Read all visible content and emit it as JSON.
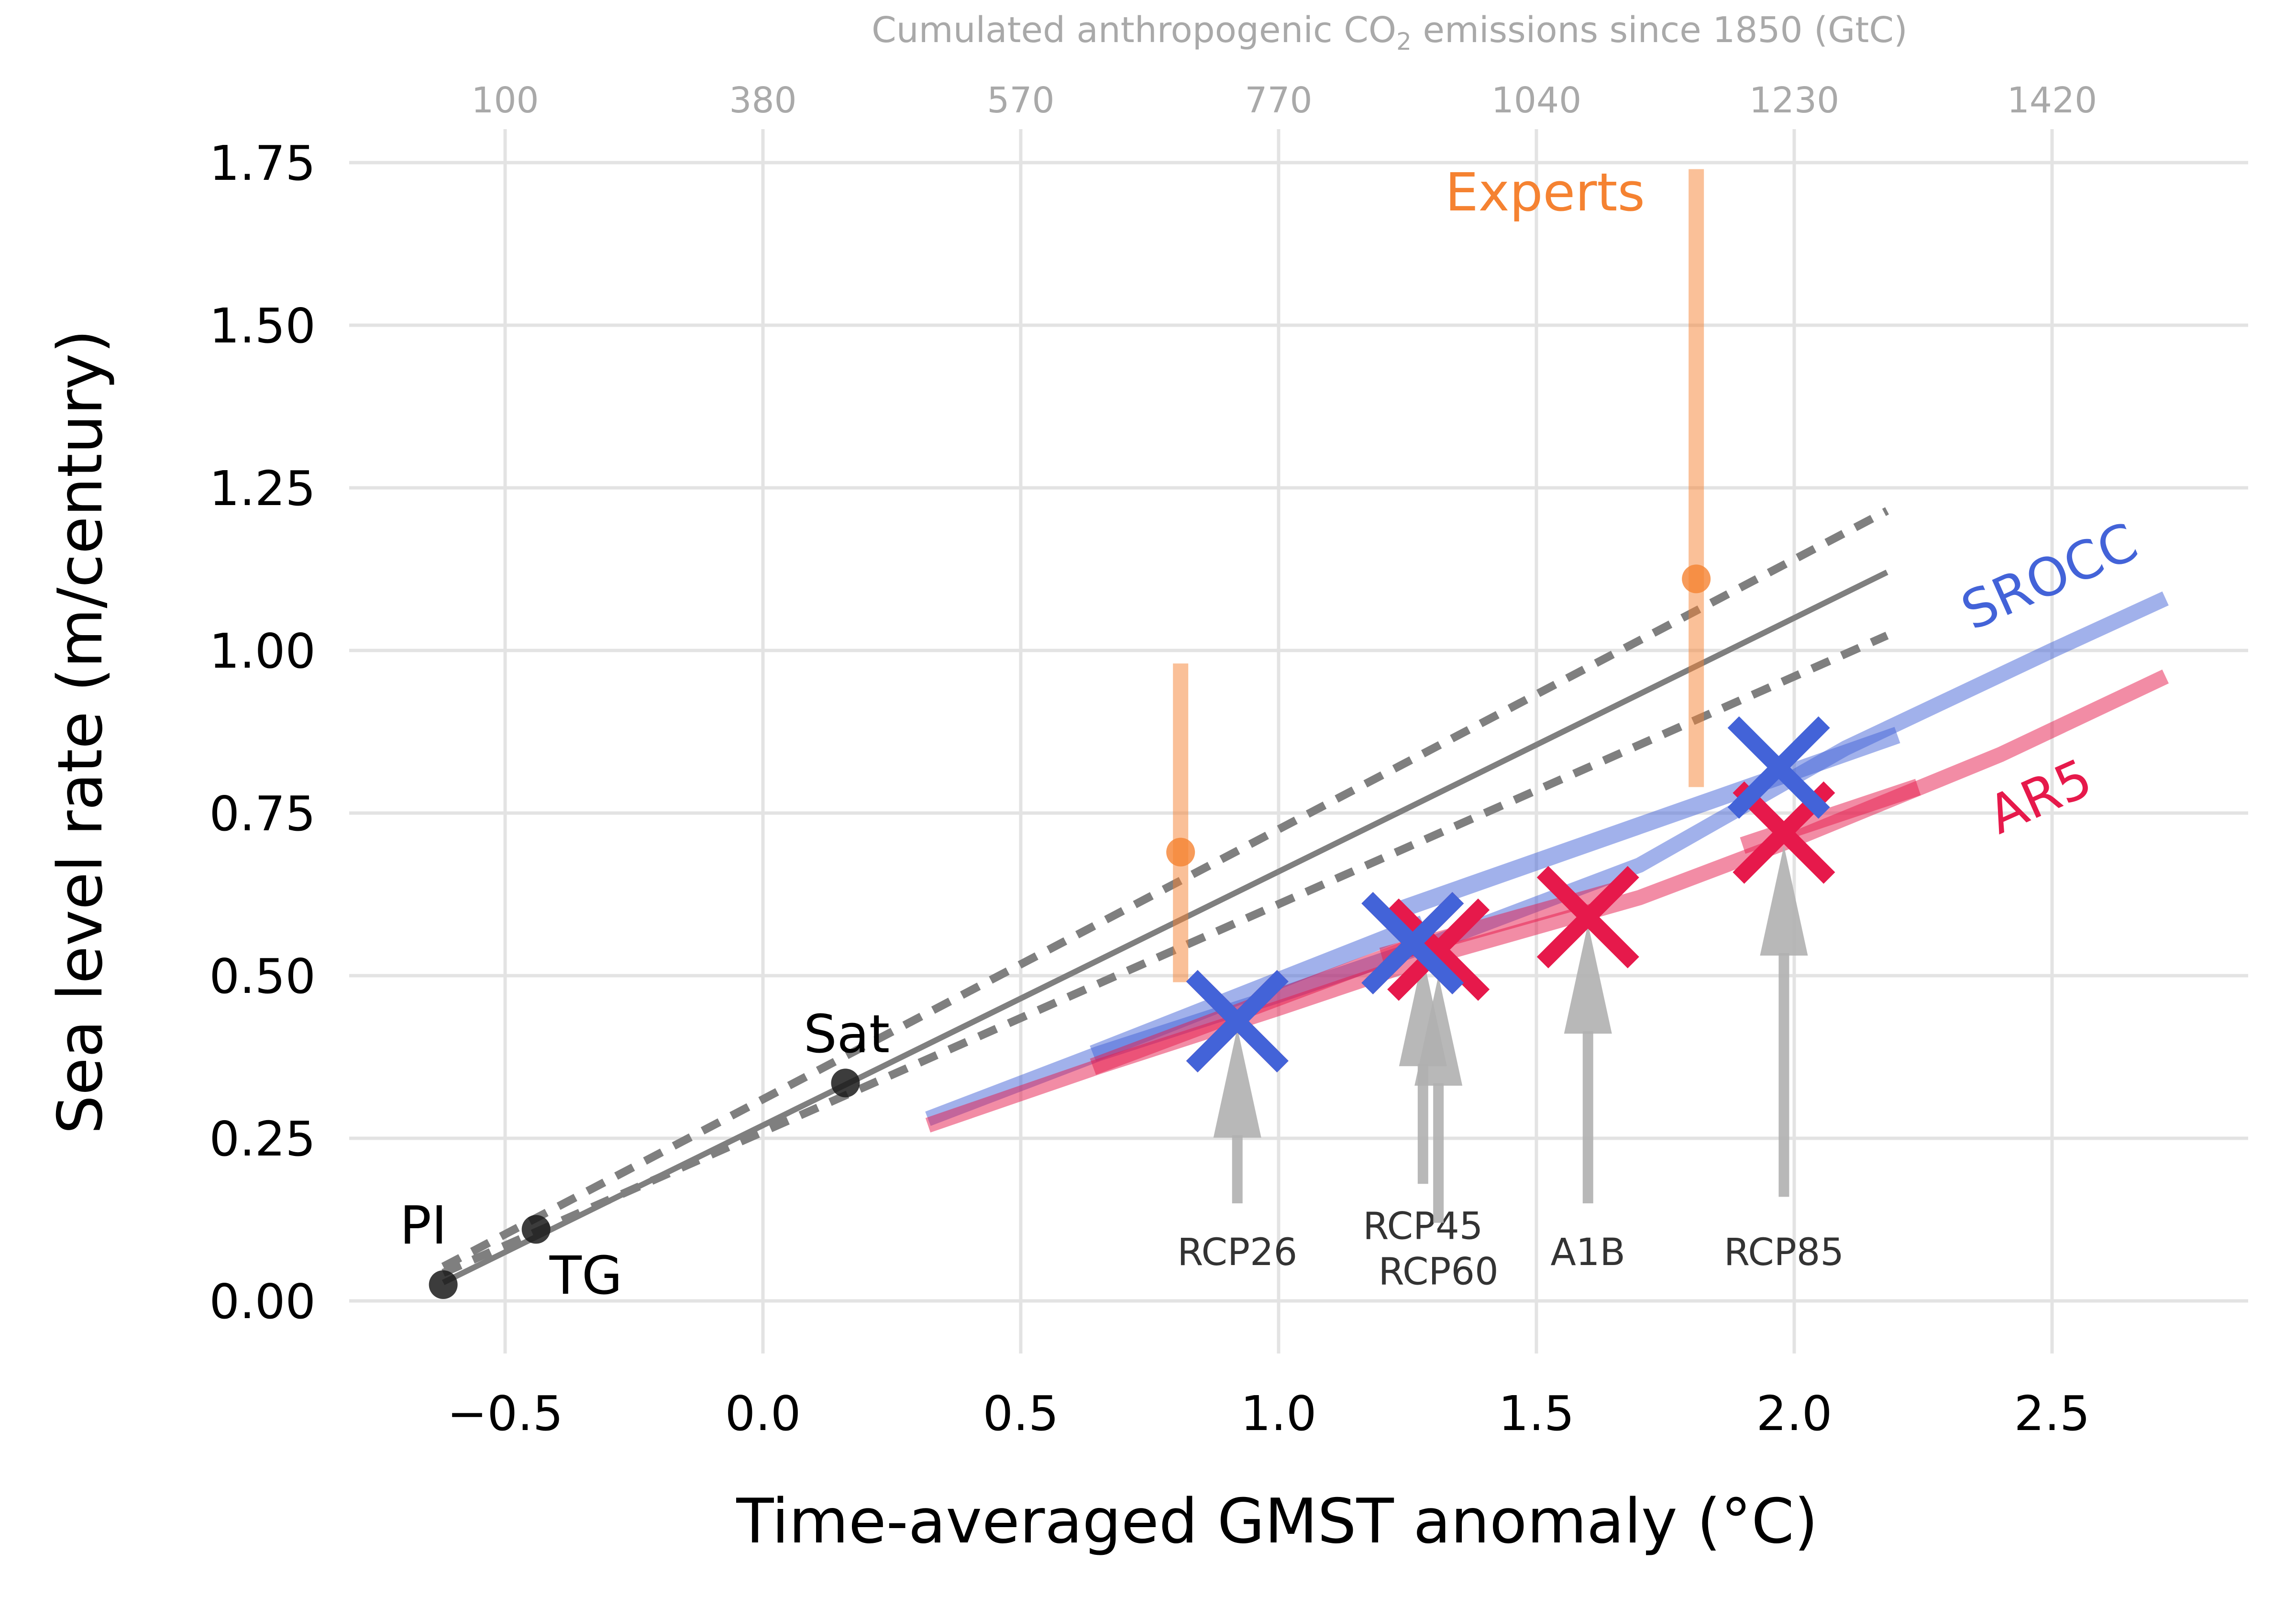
{
  "chart_data": {
    "type": "scatter",
    "title": "",
    "xlabel": "Time-averaged GMST anomaly (°C)",
    "ylabel": "Sea level rate (m/century)",
    "top_xlabel": "Cumulated anthropogenic CO₂ emissions since 1850 (GtC)",
    "xlim": [
      -0.78,
      2.92
    ],
    "ylim": [
      -0.08,
      1.8
    ],
    "grid": true,
    "x_ticks": [
      -0.5,
      0.0,
      0.5,
      1.0,
      1.5,
      2.0,
      2.5
    ],
    "x_tick_labels": [
      "−0.5",
      "0.0",
      "0.5",
      "1.0",
      "1.5",
      "2.0",
      "2.5"
    ],
    "y_ticks": [
      0.0,
      0.25,
      0.5,
      0.75,
      1.0,
      1.25,
      1.5,
      1.75
    ],
    "y_tick_labels": [
      "0.00",
      "0.25",
      "0.50",
      "0.75",
      "1.00",
      "1.25",
      "1.50",
      "1.75"
    ],
    "top_ticks": [
      {
        "x": -0.5,
        "label": "100"
      },
      {
        "x": 0.0,
        "label": "380"
      },
      {
        "x": 0.5,
        "label": "570"
      },
      {
        "x": 1.0,
        "label": "770"
      },
      {
        "x": 1.5,
        "label": "1040"
      },
      {
        "x": 2.0,
        "label": "1230"
      },
      {
        "x": 2.5,
        "label": "1420"
      }
    ],
    "observations": [
      {
        "name": "PI",
        "x": -0.62,
        "y": 0.025
      },
      {
        "name": "TG",
        "x": -0.44,
        "y": 0.11
      },
      {
        "name": "Sat",
        "x": 0.16,
        "y": 0.335
      }
    ],
    "obs_fit": {
      "x_range": [
        -0.62,
        2.18
      ],
      "central": {
        "slope": 0.39,
        "intercept": 0.27
      },
      "upper": {
        "slope": 0.415,
        "intercept": 0.31
      },
      "lower": {
        "slope": 0.35,
        "intercept": 0.26
      }
    },
    "experts": {
      "label": "Experts",
      "points": [
        {
          "x": 0.81,
          "y": 0.69,
          "low": 0.49,
          "high": 0.98
        },
        {
          "x": 1.81,
          "y": 1.11,
          "low": 0.79,
          "high": 1.74
        }
      ]
    },
    "series": [
      {
        "name": "SROCC",
        "line": [
          [
            0.32,
            0.28
          ],
          [
            0.65,
            0.38
          ],
          [
            1.0,
            0.47
          ],
          [
            1.3,
            0.55
          ],
          [
            1.7,
            0.67
          ],
          [
            2.1,
            0.85
          ],
          [
            2.5,
            1.0
          ],
          [
            2.72,
            1.08
          ]
        ],
        "segments": [
          {
            "x": [
              0.64,
              1.28
            ],
            "y": [
              0.38,
              0.58
            ]
          },
          {
            "x": [
              1.23,
              2.2
            ],
            "y": [
              0.6,
              0.87
            ]
          }
        ],
        "points": [
          {
            "scenario": "RCP26",
            "x": 0.92,
            "y": 0.43
          },
          {
            "scenario": "RCP45",
            "x": 1.26,
            "y": 0.55
          },
          {
            "scenario": "RCP85",
            "x": 1.97,
            "y": 0.82
          }
        ]
      },
      {
        "name": "AR5",
        "line": [
          [
            0.32,
            0.27
          ],
          [
            0.65,
            0.36
          ],
          [
            1.0,
            0.45
          ],
          [
            1.3,
            0.53
          ],
          [
            1.7,
            0.62
          ],
          [
            2.0,
            0.71
          ],
          [
            2.4,
            0.84
          ],
          [
            2.72,
            0.96
          ]
        ],
        "segments": [
          {
            "x": [
              0.64,
              1.28
            ],
            "y": [
              0.36,
              0.55
            ]
          },
          {
            "x": [
              1.2,
              1.65
            ],
            "y": [
              0.53,
              0.63
            ]
          },
          {
            "x": [
              1.9,
              2.24
            ],
            "y": [
              0.7,
              0.79
            ]
          }
        ],
        "points": [
          {
            "scenario": "RCP26",
            "x": 0.92,
            "y": 0.43
          },
          {
            "scenario": "RCP45",
            "x": 1.26,
            "y": 0.55
          },
          {
            "scenario": "RCP60",
            "x": 1.31,
            "y": 0.54
          },
          {
            "scenario": "A1B",
            "x": 1.6,
            "y": 0.59
          },
          {
            "scenario": "RCP85",
            "x": 1.98,
            "y": 0.72
          }
        ]
      }
    ],
    "scenario_arrows": [
      {
        "label": "RCP26",
        "x": 0.92,
        "y_tail": 0.15,
        "y_head": 0.42,
        "label_y": 0.07
      },
      {
        "label": "RCP45",
        "x": 1.28,
        "y_tail": 0.18,
        "y_head": 0.53,
        "label_y": 0.11
      },
      {
        "label": "RCP60",
        "x": 1.31,
        "y_tail": 0.12,
        "y_head": 0.5,
        "label_y": 0.04
      },
      {
        "label": "A1B",
        "x": 1.6,
        "y_tail": 0.15,
        "y_head": 0.58,
        "label_y": 0.07
      },
      {
        "label": "RCP85",
        "x": 1.98,
        "y_tail": 0.16,
        "y_head": 0.7,
        "label_y": 0.07
      }
    ],
    "labels": {
      "sat": "Sat",
      "pi": "PI",
      "tg": "TG",
      "experts": "Experts",
      "srocc": "SROCC",
      "ar5": "AR5"
    },
    "colors": {
      "srocc": "#4363d8",
      "ar5": "#e6194b",
      "experts": "#f58231",
      "obs": "#1a1a1a",
      "fit": "#7f7f7f",
      "arrow": "#b0b0b0",
      "grid": "#e3e3e3",
      "top_axis": "#a9a9a9"
    }
  }
}
